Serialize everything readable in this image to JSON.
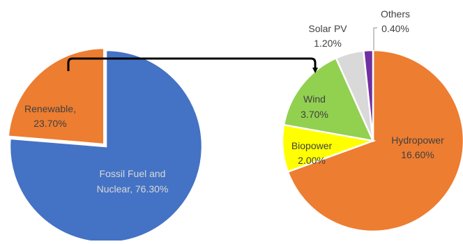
{
  "chart_data": [
    {
      "type": "pie",
      "title": "",
      "categories": [
        "Fossil Fuel and Nuclear",
        "Renewable"
      ],
      "values": [
        76.3,
        23.7
      ],
      "colors": [
        "#4472C4",
        "#ED7D31"
      ],
      "exploded": "Renewable",
      "labels": [
        {
          "lines": [
            "Fossil Fuel and",
            "Nuclear, 76.30%"
          ]
        },
        {
          "lines": [
            "Renewable,",
            "23.70%"
          ]
        }
      ]
    },
    {
      "type": "pie",
      "title": "",
      "categories": [
        "Hydropower",
        "Biopower",
        "Wind",
        "Solar PV",
        "Others"
      ],
      "values": [
        16.6,
        2.0,
        3.7,
        1.2,
        0.4
      ],
      "colors": [
        "#ED7D31",
        "#FFFF00",
        "#92D050",
        "#D9D9D9",
        "#7030A0"
      ],
      "labels": [
        {
          "lines": [
            "Hydropower",
            "16.60%"
          ]
        },
        {
          "lines": [
            "Biopower",
            "2.00%"
          ]
        },
        {
          "lines": [
            "Wind",
            "3.70%"
          ]
        },
        {
          "lines": [
            "Solar PV",
            "1.20%"
          ]
        },
        {
          "lines": [
            "Others",
            "0.40%"
          ]
        }
      ]
    }
  ]
}
